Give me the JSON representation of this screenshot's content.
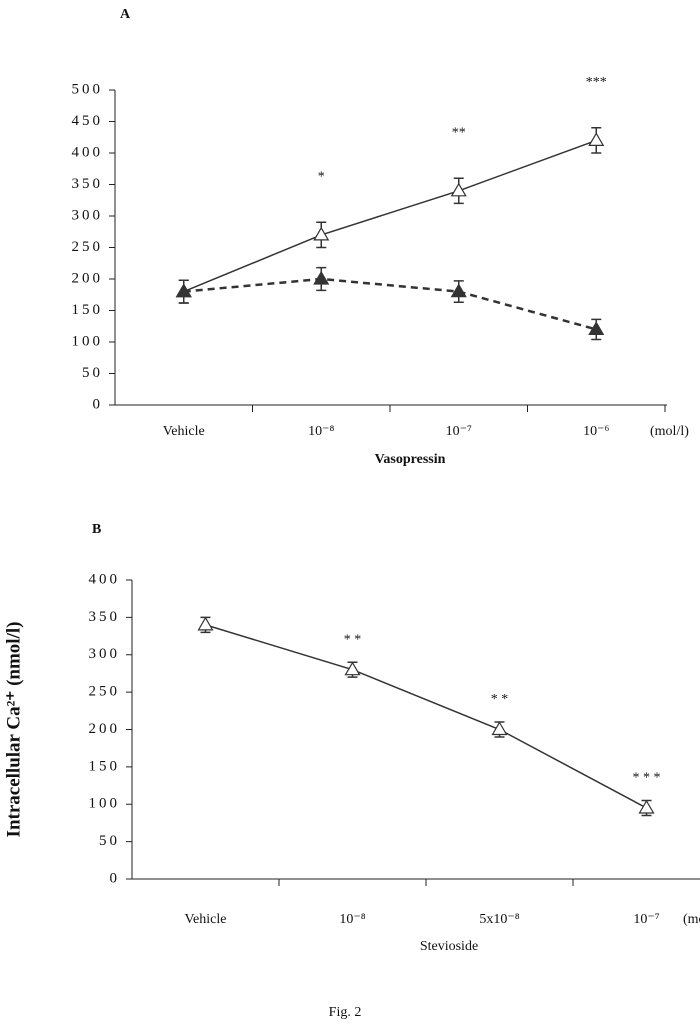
{
  "chart_data": [
    {
      "type": "line",
      "title": "A",
      "x_label": "Vasopressin",
      "x_unit": "(mol/l)",
      "categories": [
        "Vehicle",
        "10⁻⁸",
        "10⁻⁷",
        "10⁻⁶"
      ],
      "series": [
        {
          "color": "#333333",
          "marker": "open-triangle",
          "dashed": false,
          "values": [
            180,
            270,
            340,
            420
          ],
          "errors": [
            18,
            20,
            20,
            20
          ],
          "annotations": [
            null,
            "*",
            "**",
            "***"
          ]
        },
        {
          "color": "#333333",
          "marker": "filled-triangle",
          "dashed": true,
          "values": [
            180,
            200,
            180,
            120
          ],
          "errors": [
            18,
            18,
            17,
            16
          ]
        }
      ],
      "ylim": [
        0,
        500
      ],
      "yticks": [
        0,
        50,
        100,
        150,
        200,
        250,
        300,
        350,
        400,
        450,
        500
      ]
    },
    {
      "type": "line",
      "title": "B",
      "x_label": "Stevioside",
      "x_unit": "(mol/l)",
      "y_label": "Intracellular Ca²⁺ (nmol/l)",
      "categories": [
        "Vehicle",
        "10⁻⁸",
        "5x10⁻⁸",
        "10⁻⁷"
      ],
      "series": [
        {
          "color": "#333333",
          "marker": "open-triangle",
          "dashed": false,
          "values": [
            340,
            280,
            200,
            95
          ],
          "errors": [
            10,
            10,
            10,
            10
          ],
          "annotations": [
            null,
            "* *",
            "* *",
            "* * *"
          ]
        }
      ],
      "ylim": [
        0,
        400
      ],
      "yticks": [
        0,
        50,
        100,
        150,
        200,
        250,
        300,
        350,
        400
      ]
    }
  ],
  "caption": "Fig. 2"
}
